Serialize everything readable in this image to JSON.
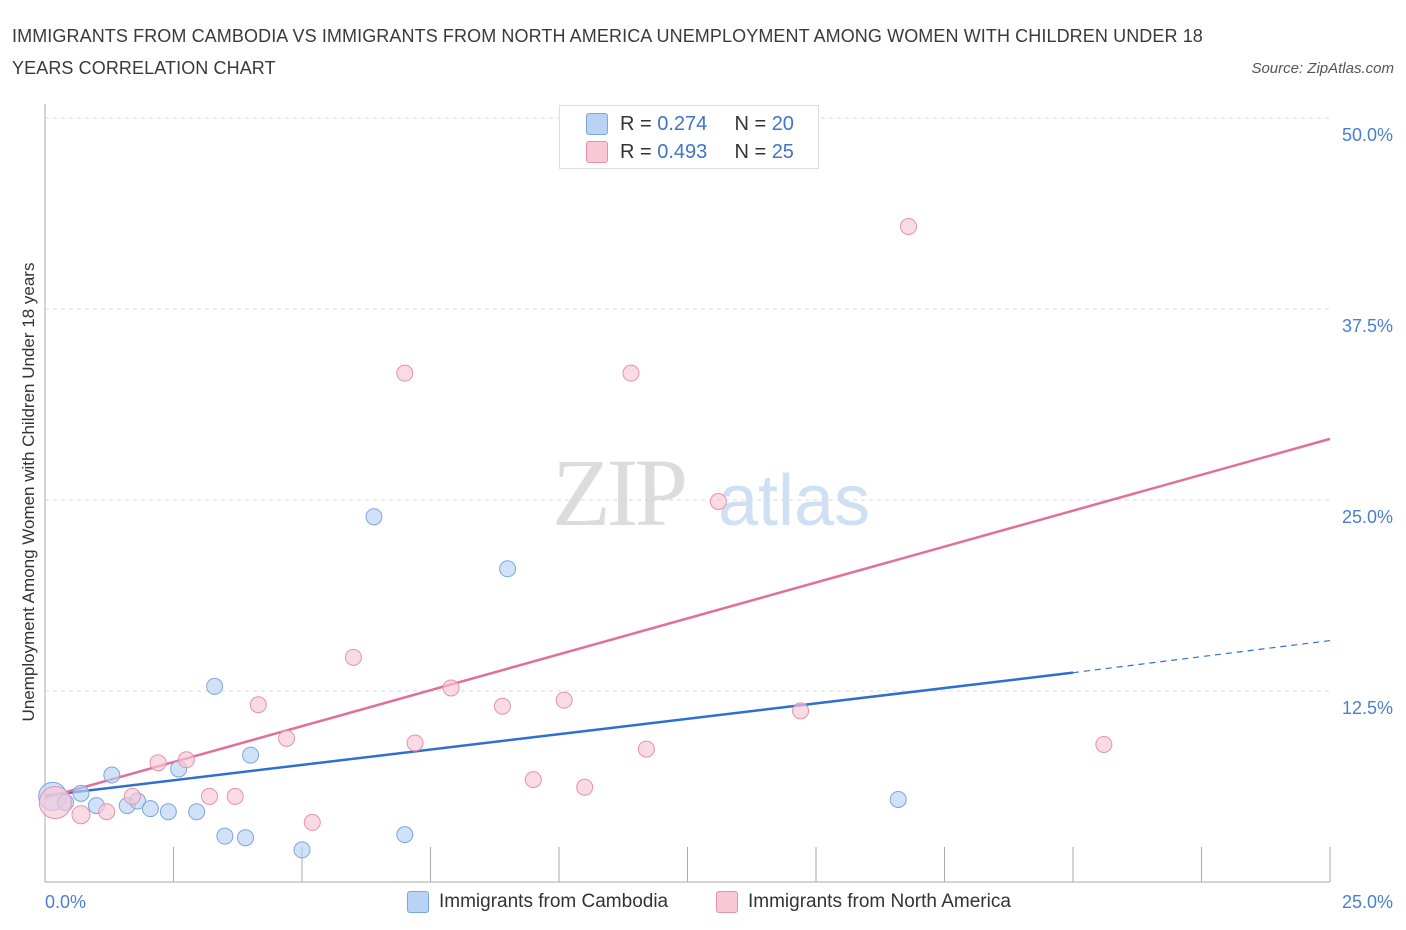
{
  "title": "IMMIGRANTS FROM CAMBODIA VS IMMIGRANTS FROM NORTH AMERICA UNEMPLOYMENT AMONG WOMEN WITH CHILDREN UNDER 18 YEARS CORRELATION CHART",
  "source": "Source: ZipAtlas.com",
  "watermark": {
    "zip": "ZIP",
    "atlas": "atlas"
  },
  "legend": {
    "r_label": "R = ",
    "n_label": "N = ",
    "rows": [
      {
        "r": "0.274",
        "n": "20"
      },
      {
        "r": "0.493",
        "n": "25"
      }
    ]
  },
  "colors": {
    "cambodia_fill": "#b9d3f5",
    "cambodia_stroke": "#7aa6e0",
    "cambodia_line": "#2f6fd0",
    "na_fill": "#f8c8d6",
    "na_stroke": "#e890aa",
    "na_line": "#e0709a",
    "grid": "#d9d9d9",
    "tick_text": "#4a7fd0"
  },
  "chart_data": {
    "type": "scatter",
    "title": "IMMIGRANTS FROM CAMBODIA VS IMMIGRANTS FROM NORTH AMERICA UNEMPLOYMENT AMONG WOMEN WITH CHILDREN UNDER 18 YEARS CORRELATION CHART",
    "xlabel": "",
    "ylabel": "Unemployment Among Women with Children Under 18 years",
    "xlim": [
      0,
      25
    ],
    "ylim": [
      0,
      50
    ],
    "x_tick_labels": [
      "0.0%",
      "25.0%"
    ],
    "y_ticks": [
      12.5,
      25,
      37.5,
      50
    ],
    "y_tick_labels": [
      "12.5%",
      "25.0%",
      "37.5%",
      "50.0%"
    ],
    "grid": true,
    "legend_position": "top-center",
    "series": [
      {
        "name": "Immigrants from Cambodia",
        "r": 0.274,
        "n": 20,
        "points": [
          {
            "x": 0.15,
            "y": 5.6,
            "s": 14
          },
          {
            "x": 0.4,
            "y": 5.2,
            "s": 8
          },
          {
            "x": 0.7,
            "y": 5.8,
            "s": 8
          },
          {
            "x": 1.0,
            "y": 5.0,
            "s": 8
          },
          {
            "x": 1.3,
            "y": 7.0,
            "s": 8
          },
          {
            "x": 1.6,
            "y": 5.0,
            "s": 8
          },
          {
            "x": 1.8,
            "y": 5.3,
            "s": 8
          },
          {
            "x": 2.05,
            "y": 4.8,
            "s": 8
          },
          {
            "x": 2.4,
            "y": 4.6,
            "s": 8
          },
          {
            "x": 2.6,
            "y": 7.4,
            "s": 8
          },
          {
            "x": 2.95,
            "y": 4.6,
            "s": 8
          },
          {
            "x": 3.3,
            "y": 12.8,
            "s": 8
          },
          {
            "x": 3.5,
            "y": 3.0,
            "s": 8
          },
          {
            "x": 3.9,
            "y": 2.9,
            "s": 8
          },
          {
            "x": 4.0,
            "y": 8.3,
            "s": 8
          },
          {
            "x": 5.0,
            "y": 2.1,
            "s": 8
          },
          {
            "x": 6.4,
            "y": 23.9,
            "s": 8
          },
          {
            "x": 7.0,
            "y": 3.1,
            "s": 8
          },
          {
            "x": 9.0,
            "y": 20.5,
            "s": 8
          },
          {
            "x": 16.6,
            "y": 5.4,
            "s": 8
          }
        ],
        "trend": {
          "x0": 0,
          "y0": 5.65,
          "x1": 20.0,
          "y1": 13.7,
          "dash_x1": 25,
          "dash_y1": 15.8
        }
      },
      {
        "name": "Immigrants from North America",
        "r": 0.493,
        "n": 25,
        "points": [
          {
            "x": 0.2,
            "y": 5.2,
            "s": 16
          },
          {
            "x": 0.7,
            "y": 4.4,
            "s": 9
          },
          {
            "x": 1.2,
            "y": 4.6,
            "s": 8
          },
          {
            "x": 1.7,
            "y": 5.6,
            "s": 8
          },
          {
            "x": 2.2,
            "y": 7.8,
            "s": 8
          },
          {
            "x": 2.75,
            "y": 8.0,
            "s": 8
          },
          {
            "x": 3.2,
            "y": 5.6,
            "s": 8
          },
          {
            "x": 3.7,
            "y": 5.6,
            "s": 8
          },
          {
            "x": 4.15,
            "y": 11.6,
            "s": 8
          },
          {
            "x": 4.7,
            "y": 9.4,
            "s": 8
          },
          {
            "x": 5.2,
            "y": 3.9,
            "s": 8
          },
          {
            "x": 6.0,
            "y": 14.7,
            "s": 8
          },
          {
            "x": 7.0,
            "y": 33.3,
            "s": 8
          },
          {
            "x": 7.2,
            "y": 9.1,
            "s": 8
          },
          {
            "x": 7.9,
            "y": 12.7,
            "s": 8
          },
          {
            "x": 8.9,
            "y": 11.5,
            "s": 8
          },
          {
            "x": 9.5,
            "y": 6.7,
            "s": 8
          },
          {
            "x": 10.1,
            "y": 11.9,
            "s": 8
          },
          {
            "x": 10.5,
            "y": 6.2,
            "s": 8
          },
          {
            "x": 11.4,
            "y": 33.3,
            "s": 8
          },
          {
            "x": 11.7,
            "y": 8.7,
            "s": 8
          },
          {
            "x": 13.1,
            "y": 24.9,
            "s": 8
          },
          {
            "x": 14.7,
            "y": 11.2,
            "s": 8
          },
          {
            "x": 16.8,
            "y": 42.9,
            "s": 8
          },
          {
            "x": 20.6,
            "y": 9.0,
            "s": 8
          }
        ],
        "trend": {
          "x0": 0,
          "y0": 5.5,
          "x1": 25,
          "y1": 29.0
        }
      }
    ]
  }
}
